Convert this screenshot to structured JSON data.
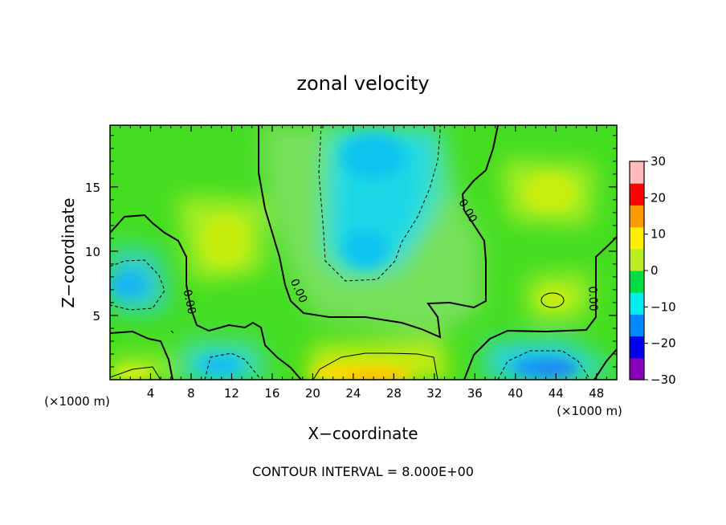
{
  "chart_data": {
    "type": "heatmap",
    "title": "zonal velocity",
    "xlabel": "X−coordinate",
    "ylabel": "Z−coordinate",
    "x_unit_left": "(×1000 m)",
    "x_unit_right": "(×1000 m)",
    "footer": "CONTOUR INTERVAL = 8.000E+00",
    "xlim": [
      0,
      50
    ],
    "ylim": [
      0,
      19.8
    ],
    "x_ticks": [
      4,
      8,
      12,
      16,
      20,
      24,
      28,
      32,
      36,
      40,
      44,
      48
    ],
    "x_tick_labels": [
      "4",
      "8",
      "12",
      "16",
      "20",
      "24",
      "28",
      "32",
      "36",
      "40",
      "44",
      "48"
    ],
    "y_ticks": [
      5,
      10,
      15
    ],
    "y_tick_labels": [
      "5",
      "10",
      "15"
    ],
    "colorbar": {
      "min": -30,
      "max": 30,
      "ticks": [
        30,
        20,
        10,
        0,
        -10,
        -20,
        -30
      ],
      "tick_labels": [
        "30",
        "20",
        "10",
        "0",
        "−10",
        "−20",
        "−30"
      ],
      "colors": [
        "#8800bb",
        "#0000ee",
        "#0088ff",
        "#00eeee",
        "#00dd44",
        "#bbee22",
        "#ffee00",
        "#ff9900",
        "#ff0000",
        "#ffbbbb"
      ]
    },
    "contour_levels": [
      -8,
      0,
      8
    ],
    "contour_labels": [
      {
        "x": 7.5,
        "z": 6.0,
        "text": "0.00",
        "rot": 78
      },
      {
        "x": 18.3,
        "z": 6.8,
        "text": "0.00",
        "rot": 65
      },
      {
        "x": 35.0,
        "z": 13.0,
        "text": "0.00",
        "rot": 60
      },
      {
        "x": 47.3,
        "z": 6.3,
        "text": "0.00",
        "rot": 88
      }
    ],
    "sample_points": [
      {
        "x": 2,
        "z": 7.5,
        "u": -8
      },
      {
        "x": 10.5,
        "z": 10.5,
        "u": 6
      },
      {
        "x": 12,
        "z": 1.5,
        "u": -9
      },
      {
        "x": 25,
        "z": 16,
        "u": -10
      },
      {
        "x": 25,
        "z": 10,
        "u": -11
      },
      {
        "x": 25.5,
        "z": 0.5,
        "u": 12
      },
      {
        "x": 43.5,
        "z": 6.3,
        "u": 9
      },
      {
        "x": 43.5,
        "z": 15,
        "u": 7
      },
      {
        "x": 44,
        "z": 1.2,
        "u": -14
      }
    ]
  }
}
